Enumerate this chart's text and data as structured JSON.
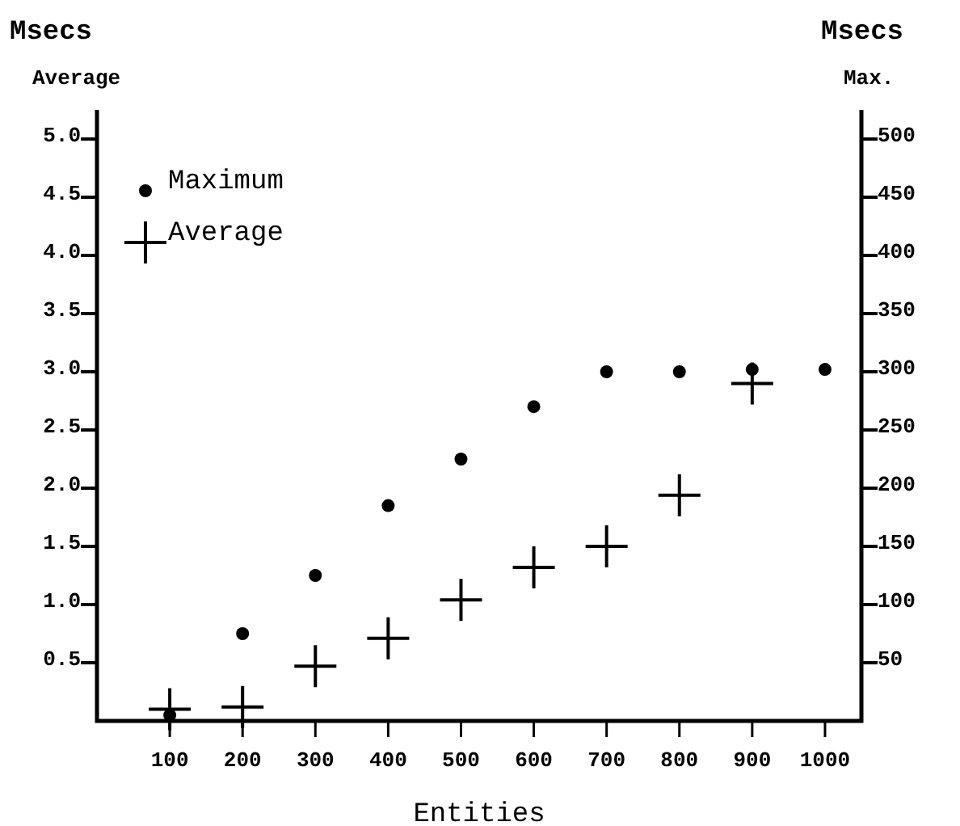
{
  "chart_data": {
    "type": "scatter",
    "xlabel": "Entities",
    "ylabel": "Msecs Average",
    "y2label": "Msecs Max.",
    "categories": [
      "100",
      "200",
      "300",
      "400",
      "500",
      "600",
      "700",
      "800",
      "900",
      "1000"
    ],
    "series": [
      {
        "name": "Maximum",
        "color": "#000000",
        "marker": "circle",
        "axis": "y2",
        "values": [
          5,
          75,
          125,
          185,
          225,
          270,
          300,
          300,
          302,
          302
        ]
      },
      {
        "name": "Average",
        "color": "#000000",
        "marker": "cross",
        "axis": "y",
        "values": [
          0.1,
          0.12,
          0.47,
          0.71,
          1.04,
          1.32,
          1.5,
          1.94,
          2.9,
          null
        ]
      }
    ],
    "ylim": [
      0,
      5.25
    ],
    "yticks": [
      {
        "value": 0.5,
        "label": "0.5"
      },
      {
        "value": 1,
        "label": "1.0"
      },
      {
        "value": 1.5,
        "label": "1.5"
      },
      {
        "value": 2,
        "label": "2.0"
      },
      {
        "value": 2.5,
        "label": "2.5"
      },
      {
        "value": 3,
        "label": "3.0"
      },
      {
        "value": 3.5,
        "label": "3.5"
      },
      {
        "value": 4,
        "label": "4.0"
      },
      {
        "value": 4.5,
        "label": "4.5"
      },
      {
        "value": 5,
        "label": "5.0"
      }
    ],
    "y2lim": [
      0,
      525
    ],
    "y2ticks": [
      50,
      100,
      150,
      200,
      250,
      300,
      350,
      400,
      450,
      500
    ],
    "legend": "top left",
    "grid": false
  }
}
